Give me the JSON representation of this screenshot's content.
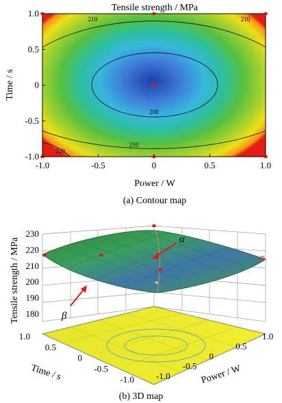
{
  "chart_data": [
    {
      "type": "contour",
      "title": "Tensile strength / MPa",
      "xlabel": "Power / W",
      "ylabel": "Time / s",
      "xlim": [
        -1.0,
        1.0
      ],
      "ylim": [
        -1.0,
        1.0
      ],
      "xticks": [
        "-1.0",
        "-0.5",
        "0",
        "0.5",
        "1.0"
      ],
      "yticks": [
        "1.0",
        "0.5",
        "0",
        "-0.5",
        "-1.0"
      ],
      "contour_labels": [
        {
          "text": "210",
          "x": -0.55,
          "y": 0.93
        },
        {
          "text": "210",
          "x": 0.82,
          "y": 0.93
        },
        {
          "text": "200",
          "x": 0.0,
          "y": -0.37
        },
        {
          "text": "210",
          "x": -0.18,
          "y": -0.83
        },
        {
          "text": "220",
          "x": -0.84,
          "y": -0.92
        }
      ],
      "design_points": [
        {
          "x": -1,
          "y": 1
        },
        {
          "x": 0,
          "y": 1
        },
        {
          "x": 1,
          "y": 1
        },
        {
          "x": 0,
          "y": 0
        },
        {
          "x": -1,
          "y": -1
        },
        {
          "x": 0,
          "y": -1
        },
        {
          "x": 1,
          "y": -1
        }
      ],
      "caption": "(a) Contour map"
    },
    {
      "type": "surface3d",
      "zlabel": "Tensile strength / MPa",
      "xlabel": "Power / W",
      "ylabel": "Time / s",
      "zticks": [
        "230",
        "220",
        "210",
        "200",
        "190",
        "180"
      ],
      "xticks": [
        "-1.0",
        "-0.5",
        "0",
        "0.5",
        "1.0"
      ],
      "yticks": [
        "1.0",
        "0.5",
        "0",
        "-0.5",
        "-1.0"
      ],
      "zlim": [
        180,
        230
      ],
      "annotations": [
        "α",
        "β"
      ],
      "caption": "(b) 3D map"
    }
  ]
}
